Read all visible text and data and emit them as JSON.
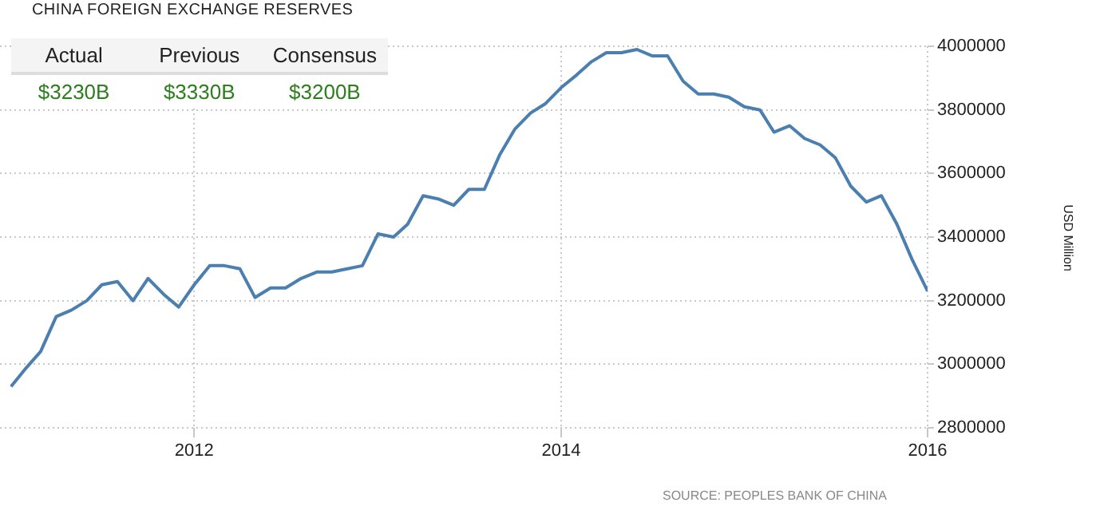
{
  "chart_data": {
    "type": "line",
    "title": "CHINA FOREIGN EXCHANGE RESERVES",
    "y2label": "USD Million",
    "x": [
      "2011-01",
      "2011-02",
      "2011-03",
      "2011-04",
      "2011-05",
      "2011-06",
      "2011-07",
      "2011-08",
      "2011-09",
      "2011-10",
      "2011-11",
      "2011-12",
      "2012-01",
      "2012-02",
      "2012-03",
      "2012-04",
      "2012-05",
      "2012-06",
      "2012-07",
      "2012-08",
      "2012-09",
      "2012-10",
      "2012-11",
      "2012-12",
      "2013-01",
      "2013-02",
      "2013-03",
      "2013-04",
      "2013-05",
      "2013-06",
      "2013-07",
      "2013-08",
      "2013-09",
      "2013-10",
      "2013-11",
      "2013-12",
      "2014-01",
      "2014-02",
      "2014-03",
      "2014-04",
      "2014-05",
      "2014-06",
      "2014-07",
      "2014-08",
      "2014-09",
      "2014-10",
      "2014-11",
      "2014-12",
      "2015-01",
      "2015-02",
      "2015-03",
      "2015-04",
      "2015-05",
      "2015-06",
      "2015-07",
      "2015-08",
      "2015-09",
      "2015-10",
      "2015-11",
      "2015-12",
      "2016-01"
    ],
    "series": [
      {
        "color": "#4a7fb0",
        "axis": "y2",
        "values": [
          2930000,
          2990000,
          3040000,
          3150000,
          3170000,
          3200000,
          3250000,
          3260000,
          3200000,
          3270000,
          3220000,
          3180000,
          3250000,
          3310000,
          3310000,
          3300000,
          3210000,
          3240000,
          3240000,
          3270000,
          3290000,
          3290000,
          3300000,
          3310000,
          3410000,
          3400000,
          3440000,
          3530000,
          3520000,
          3500000,
          3550000,
          3550000,
          3660000,
          3740000,
          3790000,
          3820000,
          3870000,
          3910000,
          3950000,
          3980000,
          3980000,
          3990000,
          3970000,
          3970000,
          3890000,
          3850000,
          3850000,
          3840000,
          3810000,
          3800000,
          3730000,
          3750000,
          3710000,
          3690000,
          3650000,
          3560000,
          3510000,
          3530000,
          3440000,
          3330000,
          3230000
        ]
      }
    ],
    "xlim": [
      "2010-12-10",
      "2016-01-01"
    ],
    "xticks": [
      "2012",
      "2014",
      "2016"
    ],
    "y2lim": [
      2800000,
      4000000
    ],
    "y2ticks": [
      2800000,
      3000000,
      3200000,
      3400000,
      3600000,
      3800000,
      4000000
    ],
    "grid": true,
    "legend": false,
    "marker": "none",
    "line_style": "solid",
    "annotations": [
      "Actual",
      "Previous",
      "Consensus",
      "$3230B",
      "$3330B",
      "$3200B",
      "SOURCE: PEOPLES BANK OF CHINA"
    ]
  }
}
